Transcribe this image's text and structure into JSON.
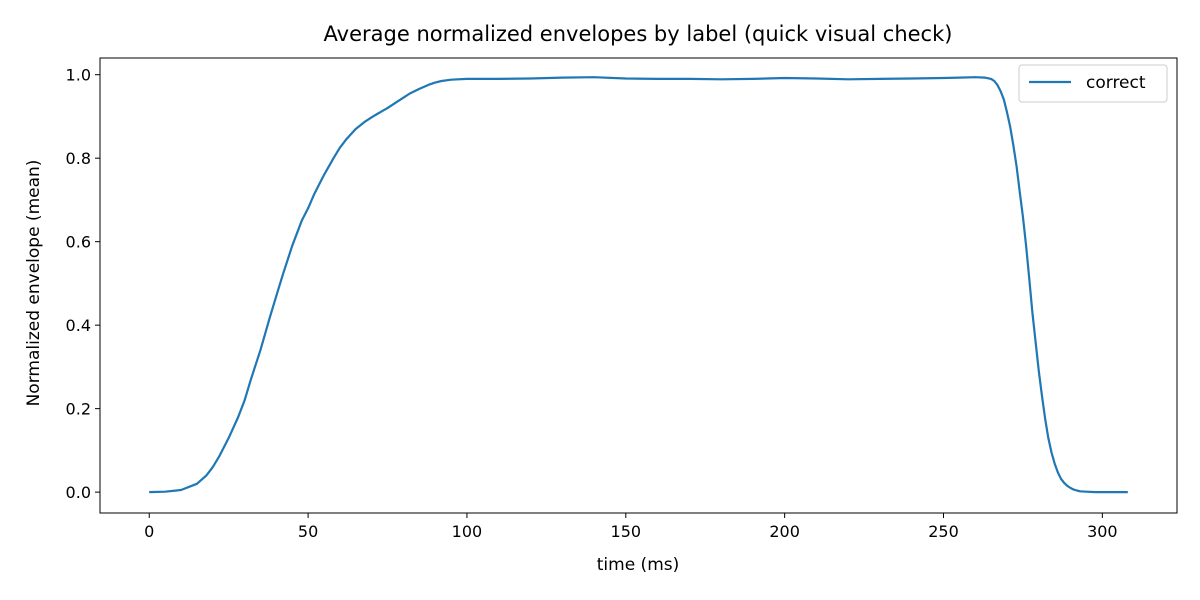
{
  "chart_data": {
    "type": "line",
    "title": "Average normalized envelopes by label (quick visual check)",
    "xlabel": "time (ms)",
    "ylabel": "Normalized envelope (mean)",
    "xlim": [
      -15.5,
      323.5
    ],
    "ylim": [
      -0.05,
      1.04
    ],
    "xticks": [
      0,
      50,
      100,
      150,
      200,
      250,
      300
    ],
    "xtick_labels": [
      "0",
      "50",
      "100",
      "150",
      "200",
      "250",
      "300"
    ],
    "yticks": [
      0.0,
      0.2,
      0.4,
      0.6,
      0.8,
      1.0
    ],
    "ytick_labels": [
      "0.0",
      "0.2",
      "0.4",
      "0.6",
      "0.8",
      "1.0"
    ],
    "grid": false,
    "legend_position": "top-right",
    "series": [
      {
        "name": "correct",
        "color": "#1f77b4",
        "x": [
          0,
          5,
          10,
          15,
          18,
          20,
          22,
          25,
          28,
          30,
          32,
          35,
          38,
          40,
          42,
          45,
          48,
          50,
          52,
          55,
          58,
          60,
          62,
          65,
          68,
          70,
          72,
          75,
          78,
          80,
          82,
          85,
          88,
          90,
          92,
          95,
          100,
          105,
          110,
          120,
          130,
          140,
          150,
          160,
          170,
          180,
          190,
          200,
          210,
          220,
          230,
          240,
          250,
          255,
          260,
          263,
          265,
          266,
          267,
          268,
          269,
          270,
          271,
          272,
          273,
          274,
          275,
          276,
          277,
          278,
          279,
          280,
          281,
          282,
          283,
          284,
          285,
          286,
          287,
          288,
          289,
          290,
          291,
          292,
          293,
          295,
          298,
          300,
          305,
          308
        ],
        "y": [
          0.0,
          0.001,
          0.005,
          0.02,
          0.04,
          0.06,
          0.085,
          0.13,
          0.18,
          0.22,
          0.27,
          0.34,
          0.42,
          0.47,
          0.52,
          0.59,
          0.65,
          0.68,
          0.715,
          0.76,
          0.8,
          0.825,
          0.845,
          0.87,
          0.888,
          0.898,
          0.907,
          0.92,
          0.935,
          0.945,
          0.955,
          0.966,
          0.976,
          0.981,
          0.985,
          0.988,
          0.99,
          0.99,
          0.99,
          0.991,
          0.993,
          0.994,
          0.991,
          0.99,
          0.99,
          0.989,
          0.99,
          0.992,
          0.991,
          0.989,
          0.99,
          0.991,
          0.992,
          0.993,
          0.994,
          0.993,
          0.99,
          0.985,
          0.975,
          0.96,
          0.94,
          0.91,
          0.875,
          0.83,
          0.78,
          0.72,
          0.66,
          0.59,
          0.51,
          0.43,
          0.36,
          0.29,
          0.23,
          0.175,
          0.13,
          0.095,
          0.068,
          0.047,
          0.032,
          0.022,
          0.015,
          0.01,
          0.006,
          0.004,
          0.002,
          0.001,
          0.0,
          0.0,
          0.0,
          0.0
        ]
      }
    ]
  }
}
